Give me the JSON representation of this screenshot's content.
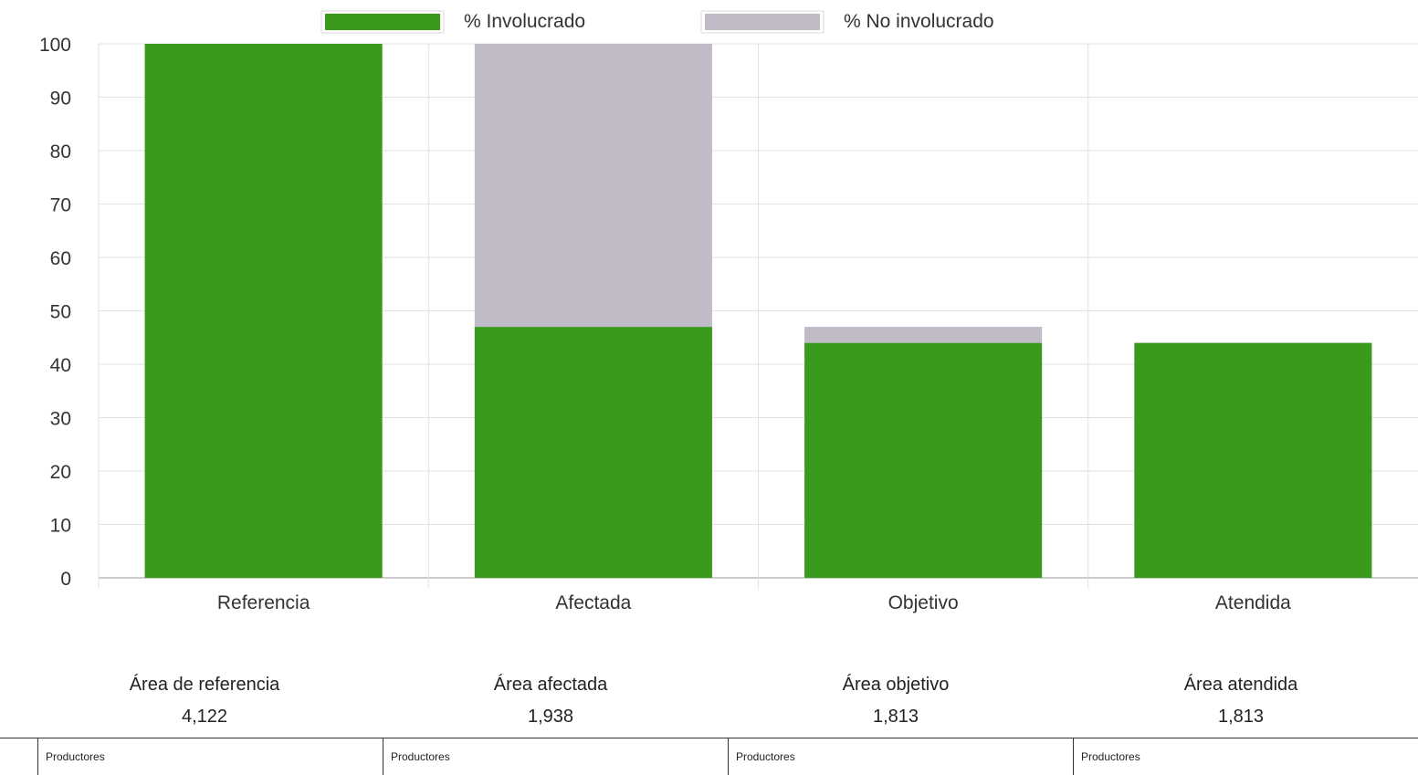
{
  "chart_data": {
    "type": "bar",
    "stacked": true,
    "categories": [
      "Referencia",
      "Afectada",
      "Objetivo",
      "Atendida"
    ],
    "series": [
      {
        "name": "% Involucrado",
        "values": [
          100,
          47,
          44,
          44
        ],
        "color": "#3a9a1e"
      },
      {
        "name": "% No involucrado",
        "values": [
          0,
          53,
          3,
          0
        ],
        "color": "#c0bbc7"
      }
    ],
    "ylim": [
      0,
      100
    ],
    "yticks": [
      0,
      10,
      20,
      30,
      40,
      50,
      60,
      70,
      80,
      90,
      100
    ],
    "grid": true,
    "legend_position": "top-center"
  },
  "summary": {
    "items": [
      {
        "label": "Área de referencia",
        "value": "4,122",
        "unit": "Productores"
      },
      {
        "label": "Área afectada",
        "value": "1,938",
        "unit": "Productores"
      },
      {
        "label": "Área objetivo",
        "value": "1,813",
        "unit": "Productores"
      },
      {
        "label": "Área atendida",
        "value": "1,813",
        "unit": "Productores"
      }
    ]
  }
}
